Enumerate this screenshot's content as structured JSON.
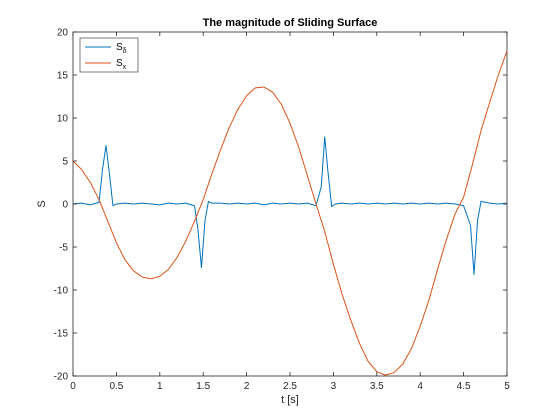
{
  "chart_data": {
    "type": "line",
    "title": "The magnitude of Sliding Surface",
    "xlabel": "t [s]",
    "ylabel": "S",
    "xlim": [
      0,
      5
    ],
    "ylim": [
      -20,
      20
    ],
    "xticks": [
      0,
      0.5,
      1,
      1.5,
      2,
      2.5,
      3,
      3.5,
      4,
      4.5,
      5
    ],
    "xtick_labels": [
      "0",
      "0.5",
      "1",
      "1.5",
      "2",
      "2.5",
      "3",
      "3.5",
      "4",
      "4.5",
      "5"
    ],
    "yticks": [
      -20,
      -15,
      -10,
      -5,
      0,
      5,
      10,
      15,
      20
    ],
    "ytick_labels": [
      "-20",
      "-15",
      "-10",
      "-5",
      "0",
      "5",
      "10",
      "15",
      "20"
    ],
    "grid": false,
    "legend_position": "top-left",
    "series": [
      {
        "name": "S",
        "subscript": "δ",
        "color": "#0072BD",
        "x": [
          0,
          0.1,
          0.2,
          0.3,
          0.34,
          0.38,
          0.42,
          0.46,
          0.5,
          0.6,
          0.7,
          0.8,
          0.9,
          1.0,
          1.1,
          1.2,
          1.3,
          1.4,
          1.44,
          1.48,
          1.52,
          1.56,
          1.6,
          1.7,
          1.8,
          1.9,
          2.0,
          2.1,
          2.2,
          2.3,
          2.4,
          2.5,
          2.6,
          2.7,
          2.8,
          2.86,
          2.9,
          2.94,
          2.98,
          3.02,
          3.1,
          3.2,
          3.3,
          3.4,
          3.5,
          3.6,
          3.7,
          3.8,
          3.9,
          4.0,
          4.1,
          4.2,
          4.3,
          4.4,
          4.5,
          4.58,
          4.62,
          4.66,
          4.7,
          4.8,
          4.9,
          5.0
        ],
        "y": [
          0,
          0.1,
          -0.1,
          0.2,
          4.0,
          6.8,
          3.5,
          -0.2,
          0.0,
          0.1,
          0.0,
          0.1,
          0.0,
          -0.1,
          0.1,
          0.0,
          0.1,
          -0.2,
          -3.0,
          -7.4,
          -2.0,
          0.3,
          0.1,
          0.1,
          0.0,
          0.1,
          0.0,
          0.1,
          -0.1,
          0.1,
          0.0,
          0.1,
          0.0,
          0.1,
          -0.2,
          2.0,
          7.8,
          3.5,
          -0.3,
          0.0,
          0.1,
          0.0,
          0.1,
          0.0,
          0.1,
          0.0,
          0.1,
          0.0,
          0.1,
          0.0,
          0.1,
          0.0,
          0.1,
          0.0,
          -0.2,
          -2.5,
          -8.2,
          -2.0,
          0.3,
          0.1,
          0.0,
          0.1
        ]
      },
      {
        "name": "S",
        "subscript": "x",
        "color": "#D95319",
        "x": [
          0,
          0.1,
          0.2,
          0.3,
          0.4,
          0.5,
          0.6,
          0.7,
          0.8,
          0.9,
          1.0,
          1.1,
          1.2,
          1.3,
          1.4,
          1.5,
          1.6,
          1.7,
          1.8,
          1.9,
          2.0,
          2.1,
          2.2,
          2.3,
          2.4,
          2.5,
          2.6,
          2.7,
          2.8,
          2.9,
          3.0,
          3.1,
          3.2,
          3.3,
          3.4,
          3.5,
          3.6,
          3.7,
          3.8,
          3.9,
          4.0,
          4.1,
          4.2,
          4.3,
          4.4,
          4.5,
          4.6,
          4.7,
          4.8,
          4.9,
          5.0
        ],
        "y": [
          5.0,
          4.0,
          2.5,
          0.5,
          -2.0,
          -4.5,
          -6.5,
          -7.8,
          -8.5,
          -8.7,
          -8.4,
          -7.6,
          -6.2,
          -4.3,
          -2.0,
          0.5,
          3.5,
          6.3,
          8.9,
          11.0,
          12.6,
          13.5,
          13.6,
          13.0,
          11.6,
          9.4,
          6.6,
          3.3,
          0.0,
          -3.2,
          -7.0,
          -10.5,
          -13.5,
          -16.2,
          -18.3,
          -19.5,
          -19.9,
          -19.6,
          -18.6,
          -16.8,
          -14.2,
          -11.2,
          -7.6,
          -4.2,
          -1.2,
          0.8,
          4.5,
          8.5,
          11.8,
          15.0,
          17.8
        ]
      }
    ]
  }
}
